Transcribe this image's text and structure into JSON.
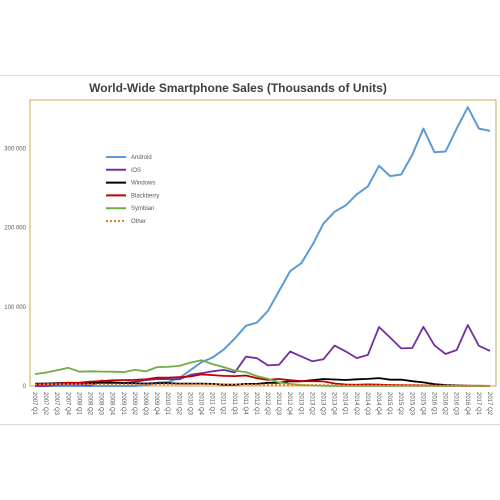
{
  "chart_data": {
    "type": "line",
    "title": "World-Wide Smartphone Sales (Thousands of Units)",
    "xlabel": "",
    "ylabel": "",
    "ylim": [
      0,
      350000
    ],
    "yticks": [
      0,
      100000,
      200000,
      300000
    ],
    "ytick_labels": [
      "0",
      "100 000",
      "200 000",
      "300 000"
    ],
    "grid": false,
    "legend_position": "upper-left",
    "categories": [
      "2007 Q1",
      "2007 Q2",
      "2007 Q3",
      "2007 Q4",
      "2008 Q1",
      "2008 Q2",
      "2008 Q3",
      "2008 Q4",
      "2009 Q1",
      "2009 Q2",
      "2009 Q3",
      "2009 Q4",
      "2010 Q1",
      "2010 Q2",
      "2010 Q3",
      "2010 Q4",
      "2011 Q1",
      "2011 Q2",
      "2011 Q3",
      "2011 Q4",
      "2012 Q1",
      "2012 Q2",
      "2012 Q3",
      "2012 Q4",
      "2013 Q1",
      "2013 Q2",
      "2013 Q3",
      "2013 Q4",
      "2014 Q1",
      "2014 Q2",
      "2014 Q3",
      "2014 Q4",
      "2015 Q1",
      "2015 Q2",
      "2015 Q3",
      "2015 Q4",
      "2016 Q1",
      "2016 Q2",
      "2016 Q3",
      "2016 Q4",
      "2017 Q1",
      "2017 Q2"
    ],
    "series": [
      {
        "name": "Android",
        "color": "#5b9bd5",
        "dash": "",
        "values": [
          0,
          0,
          0,
          0,
          0,
          0,
          0,
          0,
          0,
          0,
          1000,
          4000,
          5000,
          10000,
          20000,
          30000,
          36000,
          46000,
          60000,
          76000,
          80000,
          95000,
          120000,
          145000,
          155000,
          178000,
          205000,
          220000,
          228000,
          242000,
          252000,
          278000,
          265000,
          267000,
          292000,
          325000,
          295000,
          296000,
          325000,
          352000,
          325000,
          322000
        ]
      },
      {
        "name": "iOS",
        "color": "#7030a0",
        "dash": "",
        "values": [
          0,
          0,
          1500,
          2000,
          1700,
          700,
          7000,
          4500,
          3800,
          5400,
          7400,
          8700,
          8800,
          8400,
          14100,
          16200,
          18600,
          20300,
          17100,
          37000,
          35100,
          26000,
          26900,
          43500,
          37400,
          31200,
          33800,
          51000,
          43700,
          35200,
          39300,
          74500,
          61200,
          47500,
          48000,
          74800,
          51200,
          40400,
          45500,
          77000,
          50800,
          44300
        ]
      },
      {
        "name": "Windows",
        "color": "#000000",
        "dash": "",
        "values": [
          3000,
          3200,
          3500,
          4000,
          3800,
          3600,
          4000,
          4200,
          3600,
          3300,
          3200,
          3500,
          3500,
          3000,
          3000,
          3000,
          2600,
          1700,
          1700,
          2700,
          2700,
          4000,
          4100,
          6100,
          5900,
          7500,
          8900,
          8200,
          7600,
          8400,
          9000,
          10000,
          8000,
          8100,
          6000,
          4500,
          2400,
          1300,
          700,
          300,
          200,
          100
        ]
      },
      {
        "name": "Blackberry",
        "color": "#c00000",
        "dash": "",
        "values": [
          2000,
          2500,
          3000,
          4000,
          4300,
          5600,
          6100,
          7200,
          7500,
          7700,
          8400,
          10600,
          10600,
          11200,
          12000,
          14600,
          13700,
          12700,
          12500,
          13200,
          9900,
          7800,
          8900,
          7300,
          6200,
          6100,
          5800,
          3200,
          1900,
          1500,
          2000,
          1700,
          1300,
          1100,
          900,
          700,
          400,
          300,
          200,
          200,
          100,
          100
        ]
      },
      {
        "name": "Symbian",
        "color": "#70ad47",
        "dash": "",
        "values": [
          15000,
          17000,
          20000,
          23000,
          18000,
          18500,
          18200,
          18000,
          17500,
          20300,
          18500,
          23800,
          24100,
          25400,
          29500,
          32600,
          27600,
          23900,
          19500,
          17500,
          12500,
          9100,
          4400,
          2600,
          1300,
          600,
          300,
          0,
          0,
          0,
          0,
          0,
          0,
          0,
          0,
          0,
          0,
          0,
          0,
          0,
          0,
          0
        ]
      },
      {
        "name": "Other",
        "color": "#ed7d31",
        "dash": "2,2",
        "values": [
          2000,
          2100,
          2200,
          2300,
          2200,
          2200,
          2100,
          2000,
          2000,
          2000,
          2000,
          2000,
          2100,
          2100,
          2200,
          2300,
          2300,
          2200,
          2000,
          2000,
          1800,
          1600,
          1500,
          1400,
          1300,
          1200,
          1100,
          1000,
          900,
          800,
          700,
          700,
          600,
          600,
          500,
          500,
          400,
          400,
          400,
          300,
          300,
          300
        ]
      }
    ]
  }
}
